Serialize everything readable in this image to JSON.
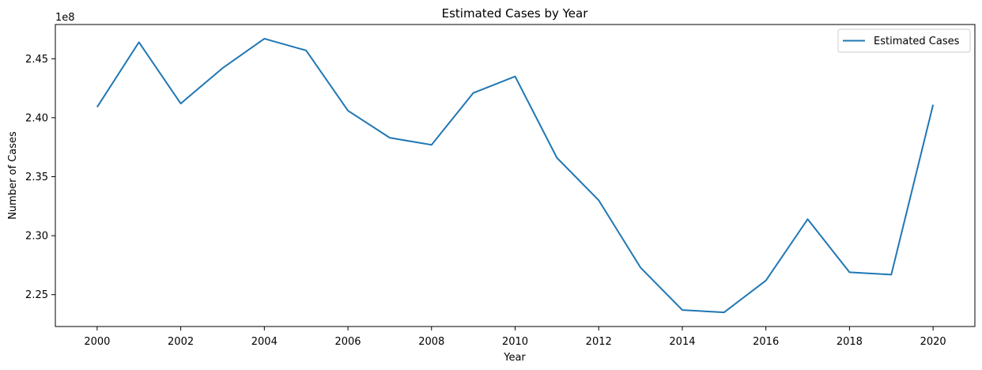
{
  "chart_data": {
    "type": "line",
    "title": "Estimated Cases by Year",
    "xlabel": "Year",
    "ylabel": "Number of Cases",
    "y_offset_label": "1e8",
    "x": [
      2000,
      2001,
      2002,
      2003,
      2004,
      2005,
      2006,
      2007,
      2008,
      2009,
      2010,
      2011,
      2012,
      2013,
      2014,
      2015,
      2016,
      2017,
      2018,
      2019,
      2020
    ],
    "series": [
      {
        "name": "Estimated Cases",
        "color": "#1f77b4",
        "values": [
          240900000,
          246400000,
          241200000,
          244200000,
          246700000,
          245700000,
          240600000,
          238300000,
          237700000,
          242100000,
          243500000,
          236600000,
          233000000,
          227300000,
          223700000,
          223500000,
          226200000,
          231400000,
          226900000,
          226700000,
          241100000
        ]
      }
    ],
    "xlim": [
      1999,
      2021
    ],
    "ylim": [
      222300000,
      247900000
    ],
    "x_ticks": [
      2000,
      2002,
      2004,
      2006,
      2008,
      2010,
      2012,
      2014,
      2016,
      2018,
      2020
    ],
    "x_tick_labels": [
      "2000",
      "2002",
      "2004",
      "2006",
      "2008",
      "2010",
      "2012",
      "2014",
      "2016",
      "2018",
      "2020"
    ],
    "y_ticks": [
      225000000,
      230000000,
      235000000,
      240000000,
      245000000
    ],
    "y_tick_labels": [
      "2.25",
      "2.30",
      "2.35",
      "2.40",
      "2.45"
    ],
    "legend_position": "top-right",
    "grid": false
  }
}
